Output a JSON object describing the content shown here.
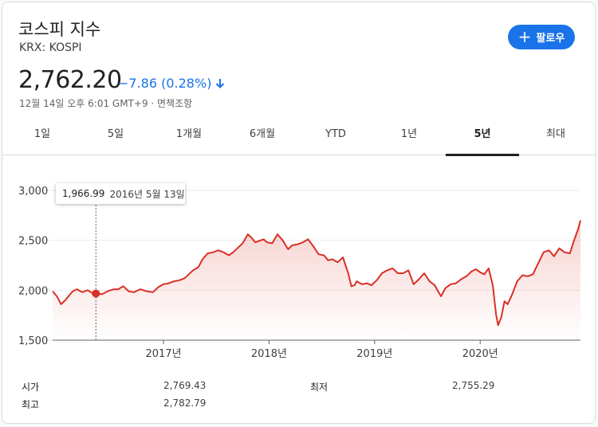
{
  "header": {
    "title": "코스피 지수",
    "ticker": "KRX: KOSPI",
    "follow_label": "팔로우",
    "price": "2,762.20",
    "change": "−7.86 (0.28%)",
    "timestamp": "12월 14일 오후 6:01 GMT+9 · 면책조항"
  },
  "tabs": [
    "1일",
    "5일",
    "1개월",
    "6개월",
    "YTD",
    "1년",
    "5년",
    "최대"
  ],
  "active_tab": "5년",
  "tooltip": {
    "value": "1,966.99",
    "date": "2016년 5월 13일"
  },
  "stats": {
    "open_label": "시가",
    "open_value": "2,769.43",
    "low_label": "최저",
    "low_value": "2,755.29",
    "high_label": "최고",
    "high_value": "2,782.79"
  },
  "colors": {
    "line": "#d93025",
    "accent": "#1a73e8",
    "down": "#1a73e8"
  },
  "chart_data": {
    "type": "area",
    "y_ticks": [
      "3,000",
      "2,500",
      "2,000",
      "1,500"
    ],
    "ylim": [
      1500,
      3000
    ],
    "x_ticks": [
      "2017년",
      "2018년",
      "2019년",
      "2020년"
    ],
    "x_tick_years": [
      2017,
      2018,
      2019,
      2020
    ],
    "xlim": [
      2015.95,
      2020.95
    ],
    "highlight": {
      "x": 2016.36,
      "y": 1966.99
    },
    "series": [
      {
        "x": [
          2015.95,
          2015.99,
          2016.03,
          2016.07,
          2016.1,
          2016.14,
          2016.18,
          2016.23,
          2016.28,
          2016.33,
          2016.36,
          2016.42,
          2016.47,
          2016.53,
          2016.57,
          2016.62,
          2016.67,
          2016.72,
          2016.78,
          2016.84,
          2016.9,
          2016.95,
          2017.0,
          2017.05,
          2017.1,
          2017.15,
          2017.2,
          2017.24,
          2017.28,
          2017.33,
          2017.37,
          2017.42,
          2017.47,
          2017.52,
          2017.57,
          2017.62,
          2017.66,
          2017.7,
          2017.75,
          2017.8,
          2017.84,
          2017.87,
          2017.92,
          2017.95,
          2017.98,
          2018.03,
          2018.08,
          2018.13,
          2018.18,
          2018.22,
          2018.27,
          2018.32,
          2018.37,
          2018.42,
          2018.47,
          2018.52,
          2018.56,
          2018.6,
          2018.65,
          2018.7,
          2018.75,
          2018.78,
          2018.81,
          2018.83,
          2018.88,
          2018.93,
          2018.97,
          2019.02,
          2019.07,
          2019.12,
          2019.17,
          2019.22,
          2019.27,
          2019.32,
          2019.37,
          2019.42,
          2019.47,
          2019.52,
          2019.57,
          2019.6,
          2019.63,
          2019.67,
          2019.72,
          2019.77,
          2019.82,
          2019.87,
          2019.92,
          2019.96,
          2020.0,
          2020.04,
          2020.08,
          2020.12,
          2020.15,
          2020.17,
          2020.2,
          2020.23,
          2020.26,
          2020.3,
          2020.35,
          2020.4,
          2020.45,
          2020.5,
          2020.55,
          2020.6,
          2020.65,
          2020.7,
          2020.75,
          2020.8,
          2020.85,
          2020.88,
          2020.91,
          2020.93,
          2020.95
        ],
        "y": [
          1990,
          1940,
          1860,
          1900,
          1940,
          1990,
          2010,
          1980,
          2000,
          1970,
          1967,
          1960,
          1990,
          2010,
          2010,
          2040,
          1990,
          1980,
          2010,
          1990,
          1980,
          2030,
          2060,
          2070,
          2090,
          2100,
          2120,
          2160,
          2200,
          2230,
          2310,
          2370,
          2380,
          2400,
          2380,
          2350,
          2380,
          2420,
          2470,
          2560,
          2520,
          2480,
          2500,
          2510,
          2480,
          2470,
          2560,
          2500,
          2410,
          2450,
          2460,
          2480,
          2510,
          2440,
          2360,
          2350,
          2300,
          2310,
          2280,
          2330,
          2170,
          2040,
          2050,
          2090,
          2060,
          2070,
          2050,
          2100,
          2170,
          2200,
          2220,
          2170,
          2170,
          2200,
          2060,
          2110,
          2170,
          2090,
          2050,
          1990,
          1940,
          2020,
          2060,
          2070,
          2110,
          2140,
          2190,
          2210,
          2180,
          2160,
          2220,
          2050,
          1760,
          1650,
          1730,
          1890,
          1860,
          1950,
          2090,
          2150,
          2140,
          2160,
          2270,
          2380,
          2400,
          2340,
          2420,
          2380,
          2370,
          2470,
          2560,
          2620,
          2700
        ]
      }
    ]
  }
}
